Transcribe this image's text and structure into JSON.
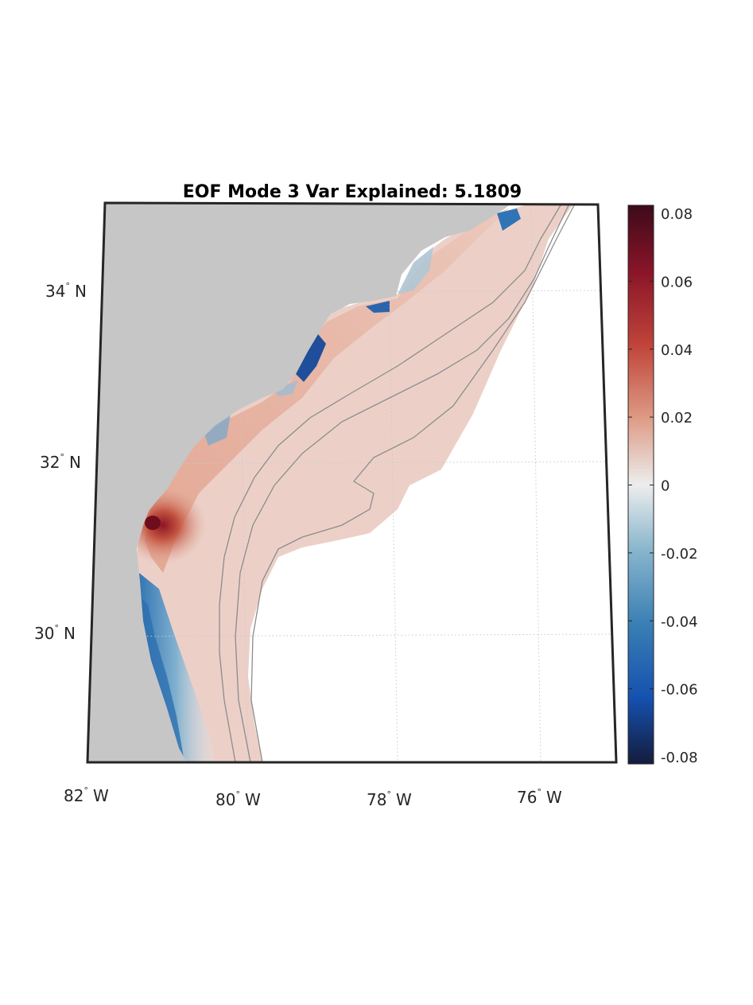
{
  "map": {
    "title": "EOF Mode 3 Var Explained: 5.1809",
    "lat_labels": [
      {
        "deg": "34",
        "hemi": "N"
      },
      {
        "deg": "32",
        "hemi": "N"
      },
      {
        "deg": "30",
        "hemi": "N"
      }
    ],
    "lon_labels": [
      {
        "deg": "82",
        "hemi": "W"
      },
      {
        "deg": "80",
        "hemi": "W"
      },
      {
        "deg": "78",
        "hemi": "W"
      },
      {
        "deg": "76",
        "hemi": "W"
      }
    ],
    "land_color": "#c6c6c6",
    "ocean_color": "#ffffff"
  },
  "colorbar": {
    "colormap": "diverging blue-white-red",
    "ticks": [
      "0.08",
      "0.06",
      "0.04",
      "0.02",
      "0",
      "-0.02",
      "-0.04",
      "-0.06",
      "-0.08"
    ],
    "range": [
      -0.08,
      0.08
    ],
    "colors": {
      "max": "#3d0a1a",
      "high": "#b5343a",
      "mid_high": "#d9907a",
      "zero": "#ececec",
      "mid_low": "#6a9fbf",
      "low": "#1a62b5",
      "min": "#141c3d"
    }
  }
}
